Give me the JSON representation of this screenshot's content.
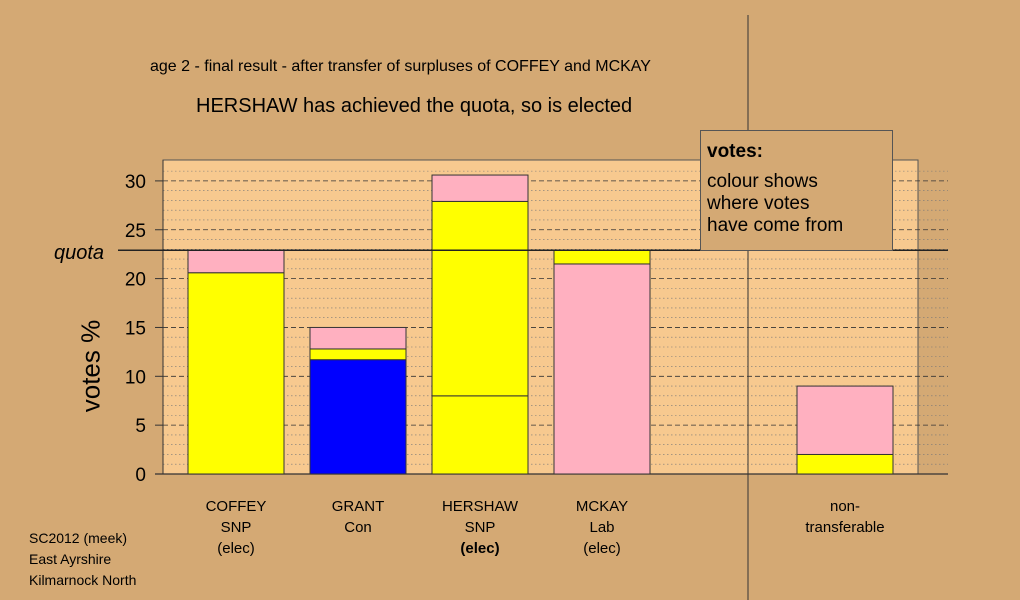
{
  "title_line1": "age 2 - final result - after transfer of surpluses of COFFEY and MCKAY",
  "title_line2": "HERSHAW has achieved the quota, so is elected",
  "quota_label": "quota",
  "legend": {
    "title": "votes:",
    "lines": [
      "colour shows",
      "where votes",
      "have come from"
    ]
  },
  "categories": [
    {
      "lines": [
        "COFFEY",
        "SNP",
        "(elec)"
      ],
      "bold_last": false
    },
    {
      "lines": [
        "GRANT",
        "Con"
      ],
      "bold_last": false
    },
    {
      "lines": [
        "HERSHAW",
        "SNP",
        "(elec)"
      ],
      "bold_last": true
    },
    {
      "lines": [
        "MCKAY",
        "Lab",
        "(elec)"
      ],
      "bold_last": false
    },
    {
      "lines": [
        "non-",
        "transferable"
      ],
      "bold_last": false
    }
  ],
  "footnote": [
    "SC2012 (meek)",
    "East Ayrshire",
    "Kilmarnock North"
  ],
  "colors": {
    "background": "#d4a974",
    "plot_area": "#f7c98f",
    "snp": "#ffff00",
    "con": "#0000ff",
    "lab": "#ffb0c0"
  },
  "chart_data": {
    "type": "bar",
    "stacked": true,
    "xlabel": "",
    "ylabel": "votes %",
    "ylim": [
      0,
      32
    ],
    "yticks": [
      0,
      5,
      10,
      15,
      20,
      25,
      30
    ],
    "quota": 22.9,
    "grid": true,
    "legend_position": "top-right",
    "categories": [
      "COFFEY",
      "GRANT",
      "HERSHAW",
      "MCKAY",
      "non-transferable"
    ],
    "bars": [
      {
        "category": "COFFEY",
        "segments": [
          {
            "value": 20.6,
            "color": "#ffff00"
          },
          {
            "value": 2.3,
            "color": "#ffb0c0"
          }
        ]
      },
      {
        "category": "GRANT",
        "segments": [
          {
            "value": 11.7,
            "color": "#0000ff"
          },
          {
            "value": 1.1,
            "color": "#ffff00"
          },
          {
            "value": 2.2,
            "color": "#ffb0c0"
          }
        ]
      },
      {
        "category": "HERSHAW",
        "segments": [
          {
            "value": 8.0,
            "color": "#ffff00"
          },
          {
            "value": 19.9,
            "color": "#ffff00"
          },
          {
            "value": 2.7,
            "color": "#ffb0c0"
          }
        ]
      },
      {
        "category": "MCKAY",
        "segments": [
          {
            "value": 21.5,
            "color": "#ffb0c0"
          },
          {
            "value": 1.4,
            "color": "#ffff00"
          }
        ]
      },
      {
        "category": "non-transferable",
        "segments": [
          {
            "value": 2.0,
            "color": "#ffff00"
          },
          {
            "value": 7.0,
            "color": "#ffb0c0"
          }
        ]
      }
    ]
  }
}
